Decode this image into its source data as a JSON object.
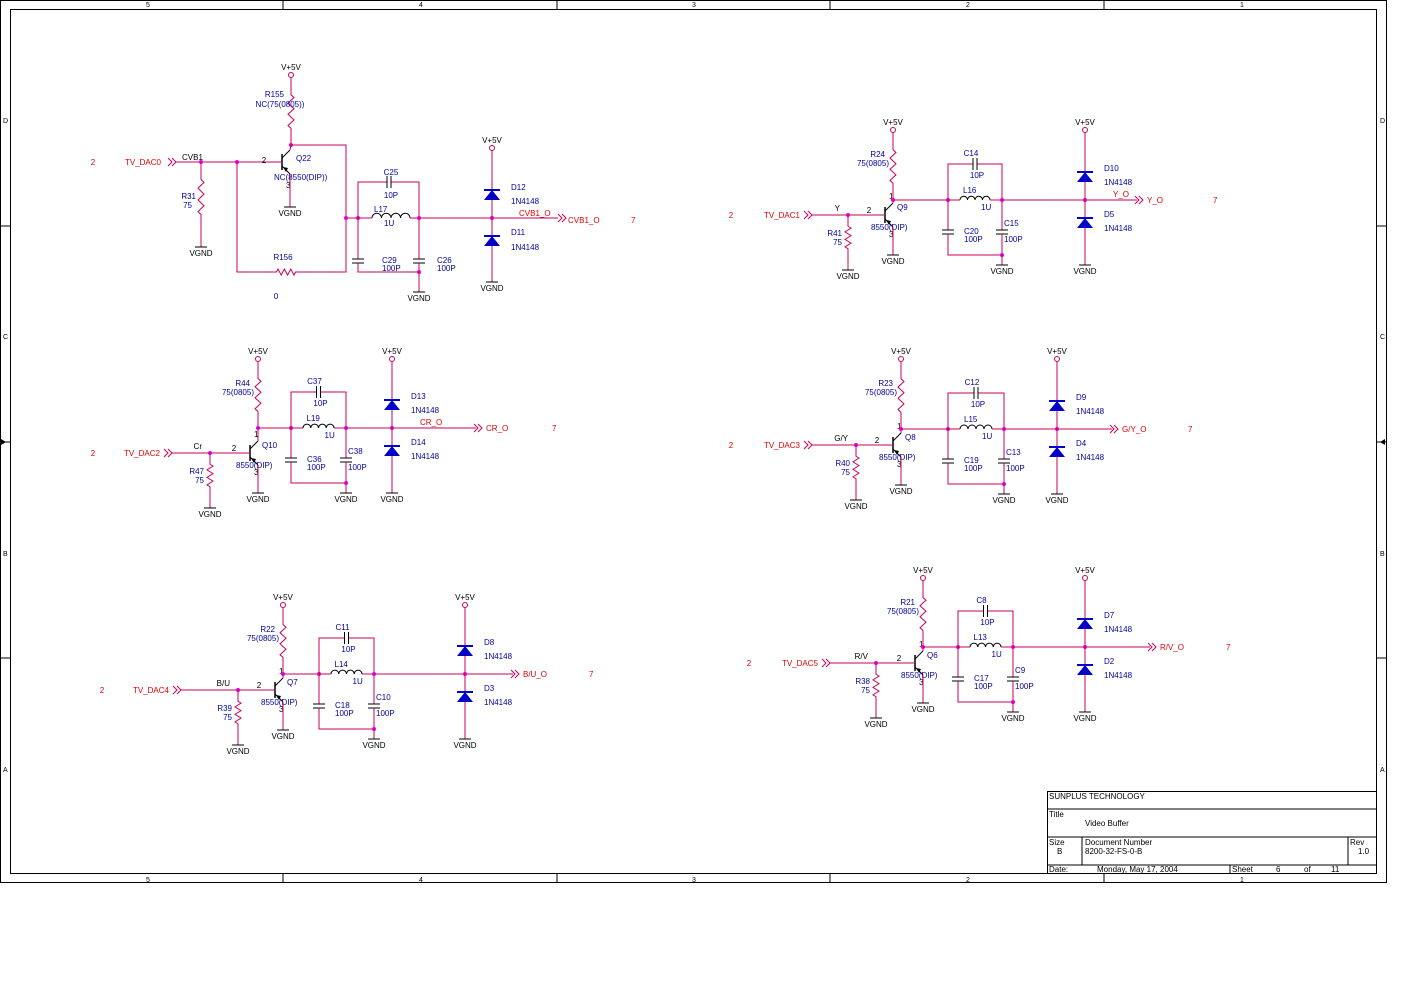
{
  "border": {
    "columns": [
      "5",
      "4",
      "3",
      "2",
      "1"
    ],
    "rows": [
      "D",
      "C",
      "B",
      "A"
    ]
  },
  "title_block": {
    "company": "SUNPLUS TECHNOLOGY",
    "title_label": "Title",
    "title": "Video Buffer",
    "size_label": "Size",
    "size": "B",
    "docnum_label": "Document Number",
    "docnum": "8200-32-FS-0-B",
    "rev_label": "Rev",
    "rev": "1.0",
    "date_label": "Date:",
    "date": "Monday, May 17, 2004",
    "sheet_label": "Sheet",
    "sheet": "6",
    "of_label": "of",
    "of": "11"
  },
  "common": {
    "vcc": "V+5V",
    "gnd": "VGND",
    "diode_part": "1N4148",
    "off_sheet_in": "2",
    "off_sheet_out": "7",
    "pin_b": "2",
    "pin_c": "1",
    "pin_e": "3"
  },
  "circuits": [
    {
      "id": "cvbs",
      "input": "TV_DAC0",
      "node": "CVB1",
      "r_in": "R31",
      "r_in_val": "75",
      "r_top": "R155",
      "r_top_val": "NC(75(0805))",
      "q": "Q22",
      "q_val": "NC(8550(DIP))",
      "c_top": "C25",
      "c_top_val": "10P",
      "l": "L17",
      "l_val": "1U",
      "c_l": "C29",
      "c_l_val": "100P",
      "c_r": "C26",
      "c_r_val": "100P",
      "d_top": "D12",
      "d_bot": "D11",
      "out_net": "CVB1_O",
      "output": "CVB1_O",
      "r_fb": "R156",
      "r_fb_val": "0"
    },
    {
      "id": "y",
      "input": "TV_DAC1",
      "node": "Y",
      "r_in": "R41",
      "r_in_val": "75",
      "r_top": "R24",
      "r_top_val": "75(0805)",
      "q": "Q9",
      "q_val": "8550(DIP)",
      "c_top": "C14",
      "c_top_val": "10P",
      "l": "L16",
      "l_val": "1U",
      "c_l": "C20",
      "c_l_val": "100P",
      "c_r": "C15",
      "c_r_val": "100P",
      "d_top": "D10",
      "d_bot": "D5",
      "out_net": "Y_O",
      "output": "Y_O"
    },
    {
      "id": "cr",
      "input": "TV_DAC2",
      "node": "Cr",
      "r_in": "R47",
      "r_in_val": "75",
      "r_top": "R44",
      "r_top_val": "75(0805)",
      "q": "Q10",
      "q_val": "8550(DIP)",
      "c_top": "C37",
      "c_top_val": "10P",
      "l": "L19",
      "l_val": "1U",
      "c_l": "C36",
      "c_l_val": "100P",
      "c_r": "C38",
      "c_r_val": "100P",
      "d_top": "D13",
      "d_bot": "D14",
      "out_net": "CR_O",
      "output": "CR_O"
    },
    {
      "id": "gy",
      "input": "TV_DAC3",
      "node": "G/Y",
      "r_in": "R40",
      "r_in_val": "75",
      "r_top": "R23",
      "r_top_val": "75(0805)",
      "q": "Q8",
      "q_val": "8550(DIP)",
      "c_top": "C12",
      "c_top_val": "10P",
      "l": "L15",
      "l_val": "1U",
      "c_l": "C19",
      "c_l_val": "100P",
      "c_r": "C13",
      "c_r_val": "100P",
      "d_top": "D9",
      "d_bot": "D4",
      "out_net": "",
      "output": "G/Y_O"
    },
    {
      "id": "bu",
      "input": "TV_DAC4",
      "node": "B/U",
      "r_in": "R39",
      "r_in_val": "75",
      "r_top": "R22",
      "r_top_val": "75(0805)",
      "q": "Q7",
      "q_val": "8550(DIP)",
      "c_top": "C11",
      "c_top_val": "10P",
      "l": "L14",
      "l_val": "1U",
      "c_l": "C18",
      "c_l_val": "100P",
      "c_r": "C10",
      "c_r_val": "100P",
      "d_top": "D8",
      "d_bot": "D3",
      "out_net": "",
      "output": "B/U_O"
    },
    {
      "id": "rv",
      "input": "TV_DAC5",
      "node": "R/V",
      "r_in": "R38",
      "r_in_val": "75",
      "r_top": "R21",
      "r_top_val": "75(0805)",
      "q": "Q6",
      "q_val": "8550(DIP)",
      "c_top": "C8",
      "c_top_val": "10P",
      "l": "L13",
      "l_val": "1U",
      "c_l": "C17",
      "c_l_val": "100P",
      "c_r": "C9",
      "c_r_val": "100P",
      "d_top": "D7",
      "d_bot": "D2",
      "out_net": "",
      "output": "R/V_O"
    }
  ]
}
